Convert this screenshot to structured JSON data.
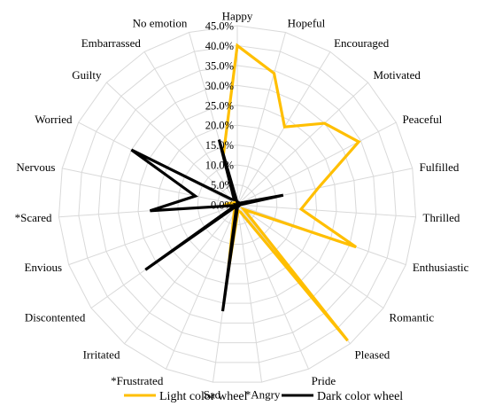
{
  "chart_data": {
    "type": "radar",
    "categories": [
      "Happy",
      "Hopeful",
      "Encouraged",
      "Motivated",
      "Peaceful",
      "Fulfilled",
      "Thrilled",
      "Enthusiastic",
      "Romantic",
      "Pleased",
      "Pride",
      "*Angry",
      "Sad",
      "*Frustrated",
      "Irritated",
      "Discontented",
      "Envious",
      "*Scared",
      "Nervous",
      "Worried",
      "Guilty",
      "Embarrassed",
      "No emotion"
    ],
    "series": [
      {
        "name": "Light color wheel",
        "color": "#FFBF00",
        "values": [
          40.0,
          34.3,
          22.9,
          30.0,
          34.4,
          20.8,
          16.1,
          31.7,
          2.0,
          44.0,
          2.0,
          1.5,
          17.0,
          2.0,
          0.5,
          0.0,
          0.2,
          3.6,
          2.0,
          1.0,
          0.5,
          1.0,
          13.0
        ]
      },
      {
        "name": "Dark color wheel",
        "color": "#000000",
        "values": [
          0.5,
          1.0,
          0.0,
          0.5,
          1.0,
          11.8,
          0.5,
          0.0,
          0.5,
          0.5,
          0.5,
          0.5,
          27.0,
          0.5,
          0.5,
          28.3,
          0.5,
          22.0,
          10.8,
          30.0,
          2.0,
          1.5,
          17.0
        ]
      }
    ],
    "r_ticks": [
      "0.0%",
      "5.0%",
      "10.0%",
      "15.0%",
      "20.0%",
      "25.0%",
      "30.0%",
      "35.0%",
      "40.0%",
      "45.0%"
    ],
    "r_range": [
      0,
      45
    ],
    "tick_step": 5,
    "grid": true,
    "grid_color": "#D9D9D9",
    "legend_position": "bottom"
  }
}
